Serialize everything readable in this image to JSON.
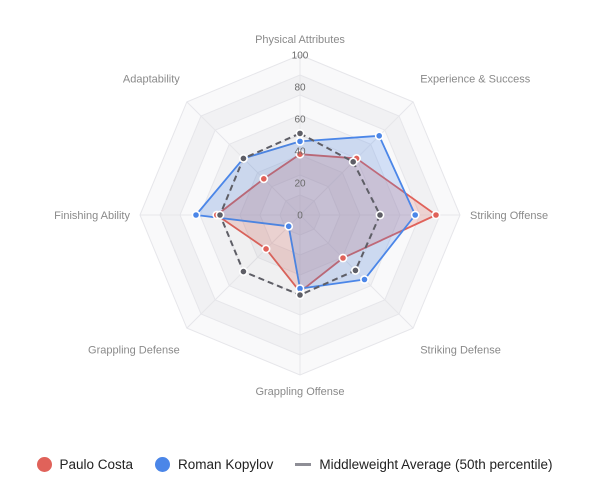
{
  "chart_data": {
    "type": "radar",
    "axes": [
      "Physical Attributes",
      "Experience & Success",
      "Striking Offense",
      "Striking Defense",
      "Grappling Offense",
      "Grappling Defense",
      "Finishing Ability",
      "Adaptability"
    ],
    "ticks": [
      "0",
      "20",
      "40",
      "60",
      "80",
      "100"
    ],
    "range": [
      0,
      100
    ],
    "series": [
      {
        "name": "Paulo Costa",
        "color": "#e0625a",
        "style": "solid",
        "values": [
          38,
          50,
          85,
          38,
          48,
          30,
          52,
          32
        ]
      },
      {
        "name": "Roman Kopylov",
        "color": "#4b86e8",
        "style": "solid",
        "values": [
          46,
          70,
          72,
          57,
          46,
          10,
          65,
          50
        ]
      },
      {
        "name": "Middleweight Average (50th percentile)",
        "color": "#5e5e66",
        "style": "dashed",
        "values": [
          51,
          47,
          50,
          49,
          50,
          50,
          50,
          50
        ]
      }
    ],
    "legend_position": "bottom"
  }
}
